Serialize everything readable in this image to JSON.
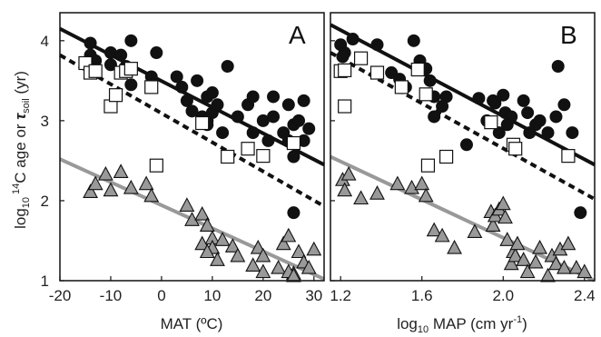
{
  "chart_data": [
    {
      "type": "scatter",
      "panel_label": "A",
      "xlabel": "MAT (ºC)",
      "ylabel_parts": [
        "log",
        "10",
        "14",
        "C age or ",
        "τ",
        "soil",
        " (yr)"
      ],
      "xlim": [
        -20,
        32
      ],
      "ylim": [
        1,
        4.35
      ],
      "xticks": [
        -20,
        -10,
        0,
        10,
        20,
        30
      ],
      "xtick_labels": [
        "-20",
        "-10",
        "0",
        "10",
        "20",
        "30"
      ],
      "yticks": [
        1,
        2,
        3,
        4
      ],
      "ytick_labels": [
        "1",
        "2",
        "3",
        "4"
      ],
      "series": [
        {
          "key": "circles",
          "marker": "circle",
          "fill": "#111111",
          "points": [
            [
              -14,
              3.97
            ],
            [
              -14,
              3.82
            ],
            [
              -13,
              3.75
            ],
            [
              -10,
              3.85
            ],
            [
              -8,
              3.82
            ],
            [
              -6,
              4.0
            ],
            [
              -7,
              3.68
            ],
            [
              -10,
              3.7
            ],
            [
              -6,
              3.45
            ],
            [
              -2,
              3.55
            ],
            [
              -1,
              3.85
            ],
            [
              3,
              3.55
            ],
            [
              4,
              3.42
            ],
            [
              5,
              3.25
            ],
            [
              6,
              3.12
            ],
            [
              7,
              3.5
            ],
            [
              8,
              3.05
            ],
            [
              9,
              3.3
            ],
            [
              9,
              3.0
            ],
            [
              9,
              2.95
            ],
            [
              10,
              3.35
            ],
            [
              10,
              3.1
            ],
            [
              11,
              3.2
            ],
            [
              12,
              2.85
            ],
            [
              13,
              3.68
            ],
            [
              15,
              3.05
            ],
            [
              17,
              3.2
            ],
            [
              18,
              2.85
            ],
            [
              18,
              3.3
            ],
            [
              20,
              3.0
            ],
            [
              21,
              2.75
            ],
            [
              22,
              3.3
            ],
            [
              22,
              3.05
            ],
            [
              24,
              2.85
            ],
            [
              25,
              2.75
            ],
            [
              25,
              3.2
            ],
            [
              26,
              2.95
            ],
            [
              26,
              2.55
            ],
            [
              27,
              3.0
            ],
            [
              28,
              2.75
            ],
            [
              28,
              3.25
            ],
            [
              29,
              2.9
            ],
            [
              26,
              1.85
            ]
          ]
        },
        {
          "key": "squares",
          "marker": "square",
          "fill": "#ffffff",
          "points": [
            [
              -15,
              3.72
            ],
            [
              -14,
              3.6
            ],
            [
              -13,
              3.62
            ],
            [
              -10,
              3.18
            ],
            [
              -9,
              3.32
            ],
            [
              -8,
              3.6
            ],
            [
              -7,
              3.62
            ],
            [
              -6,
              3.65
            ],
            [
              -2,
              3.42
            ],
            [
              -1,
              2.44
            ],
            [
              8,
              2.97
            ],
            [
              13,
              2.55
            ],
            [
              17,
              2.65
            ],
            [
              20,
              2.56
            ],
            [
              26,
              2.72
            ]
          ]
        },
        {
          "key": "triangles",
          "marker": "triangle",
          "fill": "#999999",
          "points": [
            [
              -14,
              2.1
            ],
            [
              -13,
              2.2
            ],
            [
              -11,
              2.32
            ],
            [
              -10,
              2.12
            ],
            [
              -8,
              2.35
            ],
            [
              -6,
              2.15
            ],
            [
              -3,
              2.2
            ],
            [
              -2,
              2.05
            ],
            [
              5,
              1.93
            ],
            [
              6,
              1.75
            ],
            [
              8,
              1.82
            ],
            [
              9,
              1.68
            ],
            [
              10,
              1.52
            ],
            [
              10,
              1.4
            ],
            [
              11,
              1.25
            ],
            [
              12,
              1.5
            ],
            [
              8,
              1.45
            ],
            [
              9,
              1.35
            ],
            [
              14,
              1.42
            ],
            [
              15,
              1.3
            ],
            [
              18,
              1.18
            ],
            [
              19,
              1.4
            ],
            [
              20,
              1.3
            ],
            [
              20,
              1.1
            ],
            [
              23,
              1.15
            ],
            [
              24,
              1.45
            ],
            [
              25,
              1.55
            ],
            [
              26,
              1.08
            ],
            [
              27,
              1.35
            ],
            [
              28,
              1.22
            ],
            [
              29,
              1.15
            ],
            [
              30,
              1.38
            ],
            [
              25,
              1.1
            ],
            [
              26,
              1.05
            ]
          ]
        }
      ],
      "lines": [
        {
          "key": "circles-fit",
          "style": "solid",
          "color": "#111111",
          "x": [
            -20,
            32
          ],
          "y": [
            4.15,
            2.45
          ]
        },
        {
          "key": "squares-fit",
          "style": "dashed",
          "color": "#111111",
          "x": [
            -20,
            32
          ],
          "y": [
            3.82,
            1.93
          ]
        },
        {
          "key": "triangles-fit",
          "style": "solid",
          "color": "#999999",
          "x": [
            -20,
            32
          ],
          "y": [
            2.52,
            1.02
          ]
        }
      ]
    },
    {
      "type": "scatter",
      "panel_label": "B",
      "xlabel_parts": [
        "log",
        "10",
        " MAP (cm yr",
        "-1",
        ")"
      ],
      "xlim": [
        1.15,
        2.45
      ],
      "ylim": [
        1,
        4.35
      ],
      "xticks": [
        1.2,
        1.6,
        2.0,
        2.4
      ],
      "xtick_labels": [
        "1.2",
        "1.6",
        "2.0",
        "2.4"
      ],
      "yticks": [
        1,
        2,
        3,
        4
      ],
      "series": [
        {
          "key": "circles",
          "marker": "circle",
          "fill": "#111111",
          "points": [
            [
              1.2,
              3.95
            ],
            [
              1.22,
              3.85
            ],
            [
              1.21,
              3.8
            ],
            [
              1.26,
              4.02
            ],
            [
              1.38,
              3.95
            ],
            [
              1.45,
              3.6
            ],
            [
              1.49,
              3.52
            ],
            [
              1.52,
              3.42
            ],
            [
              1.56,
              4.0
            ],
            [
              1.59,
              3.75
            ],
            [
              1.62,
              3.65
            ],
            [
              1.64,
              3.5
            ],
            [
              1.66,
              3.3
            ],
            [
              1.66,
              3.05
            ],
            [
              1.7,
              3.18
            ],
            [
              1.72,
              3.3
            ],
            [
              1.82,
              2.7
            ],
            [
              1.88,
              3.28
            ],
            [
              1.92,
              3.0
            ],
            [
              1.95,
              3.25
            ],
            [
              1.96,
              3.22
            ],
            [
              1.98,
              2.85
            ],
            [
              2.0,
              3.32
            ],
            [
              2.01,
              3.1
            ],
            [
              2.02,
              2.95
            ],
            [
              2.04,
              3.05
            ],
            [
              2.1,
              3.25
            ],
            [
              2.12,
              3.1
            ],
            [
              2.13,
              2.85
            ],
            [
              2.16,
              2.95
            ],
            [
              2.18,
              3.0
            ],
            [
              2.22,
              2.85
            ],
            [
              2.26,
              3.05
            ],
            [
              2.27,
              3.68
            ],
            [
              2.3,
              3.2
            ],
            [
              2.34,
              2.85
            ],
            [
              2.38,
              1.85
            ]
          ]
        },
        {
          "key": "squares",
          "marker": "square",
          "fill": "#ffffff",
          "points": [
            [
              1.2,
              3.62
            ],
            [
              1.22,
              3.63
            ],
            [
              1.22,
              3.18
            ],
            [
              1.3,
              3.78
            ],
            [
              1.38,
              3.6
            ],
            [
              1.5,
              3.42
            ],
            [
              1.58,
              3.64
            ],
            [
              1.62,
              3.33
            ],
            [
              1.63,
              2.44
            ],
            [
              1.72,
              2.55
            ],
            [
              1.94,
              2.98
            ],
            [
              2.05,
              2.7
            ],
            [
              2.06,
              2.65
            ],
            [
              2.32,
              2.56
            ]
          ]
        },
        {
          "key": "triangles",
          "marker": "triangle",
          "fill": "#999999",
          "points": [
            [
              1.21,
              2.25
            ],
            [
              1.22,
              2.12
            ],
            [
              1.24,
              2.32
            ],
            [
              1.3,
              2.02
            ],
            [
              1.38,
              2.08
            ],
            [
              1.48,
              2.2
            ],
            [
              1.55,
              2.15
            ],
            [
              1.6,
              2.2
            ],
            [
              1.62,
              2.05
            ],
            [
              1.66,
              1.62
            ],
            [
              1.7,
              1.55
            ],
            [
              1.76,
              1.4
            ],
            [
              1.86,
              1.6
            ],
            [
              1.94,
              1.85
            ],
            [
              1.95,
              1.68
            ],
            [
              1.96,
              1.8
            ],
            [
              1.98,
              1.88
            ],
            [
              2.0,
              1.95
            ],
            [
              2.01,
              1.78
            ],
            [
              2.02,
              1.5
            ],
            [
              2.04,
              1.2
            ],
            [
              2.05,
              1.35
            ],
            [
              2.06,
              1.3
            ],
            [
              2.07,
              1.45
            ],
            [
              2.1,
              1.25
            ],
            [
              2.12,
              1.1
            ],
            [
              2.16,
              1.22
            ],
            [
              2.18,
              1.4
            ],
            [
              2.22,
              1.05
            ],
            [
              2.24,
              1.3
            ],
            [
              2.26,
              1.2
            ],
            [
              2.28,
              1.38
            ],
            [
              2.3,
              1.15
            ],
            [
              2.32,
              1.45
            ],
            [
              2.36,
              1.15
            ],
            [
              2.4,
              1.1
            ]
          ]
        }
      ],
      "lines": [
        {
          "key": "circles-fit",
          "style": "solid",
          "color": "#111111",
          "x": [
            1.15,
            2.45
          ],
          "y": [
            4.2,
            2.45
          ]
        },
        {
          "key": "squares-fit",
          "style": "dashed",
          "color": "#111111",
          "x": [
            1.15,
            2.45
          ],
          "y": [
            3.85,
            2.02
          ]
        },
        {
          "key": "triangles-fit",
          "style": "solid",
          "color": "#999999",
          "x": [
            1.15,
            2.45
          ],
          "y": [
            2.55,
            1.0
          ]
        }
      ]
    }
  ]
}
